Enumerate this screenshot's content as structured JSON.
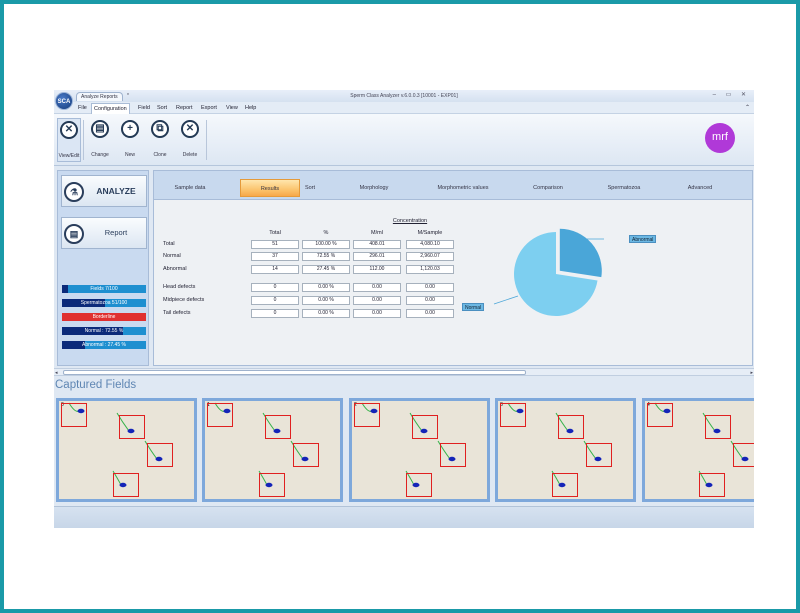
{
  "window": {
    "title": "Sperm Class Analyzer v.6.0.0.3 [10001 - EXP01]",
    "document_tab": "Analyze Reports",
    "document_tab_marker": "*",
    "logo_text": "SCA",
    "controls": "–  ▭  ✕"
  },
  "menu": {
    "items": [
      "File",
      "Configuration",
      "Field",
      "Sort",
      "Report",
      "Export",
      "View",
      "Help"
    ],
    "active": "Configuration"
  },
  "ribbon": {
    "buttons": [
      {
        "label": "View/Edit",
        "icon": "tools-icon",
        "glyph": "✕"
      },
      {
        "label": "Change",
        "icon": "document-icon",
        "glyph": "▤"
      },
      {
        "label": "New",
        "icon": "plus-icon",
        "glyph": "+"
      },
      {
        "label": "Clone",
        "icon": "clone-icon",
        "glyph": "⧉"
      },
      {
        "label": "Delete",
        "icon": "delete-icon",
        "glyph": "✕"
      }
    ],
    "brand": "mrf"
  },
  "left_panel": {
    "analyze_label": "ANALYZE",
    "report_label": "Report",
    "status": [
      {
        "text": "Fields 7/100",
        "fill": 0.07,
        "color": "#1e8fd0"
      },
      {
        "text": "Spermatozoa 51/100",
        "fill": 0.51,
        "color": "#1e8fd0"
      },
      {
        "text": "Borderline",
        "fill": 0,
        "color": "#e03030"
      },
      {
        "text": "Normal : 72.55 %",
        "fill": 0.7255,
        "color": "#1e8fd0"
      },
      {
        "text": "Abnormal : 27.45 %",
        "fill": 0.2745,
        "color": "#1e8fd0"
      }
    ]
  },
  "tabs": [
    "Sample data",
    "Results",
    "Sort",
    "Morphology",
    "Morphometric values",
    "Comparison",
    "Spermatozoa",
    "Advanced"
  ],
  "active_tab": "Results",
  "results": {
    "concentration_header": "Concentration",
    "columns": [
      "Total",
      "%",
      "M/ml",
      "M/Sample"
    ],
    "rows": [
      {
        "label": "Total",
        "values": [
          "51",
          "100.00 %",
          "408.01",
          "4,080.10"
        ]
      },
      {
        "label": "Normal",
        "values": [
          "37",
          "72.55 %",
          "296.01",
          "2,960.07"
        ]
      },
      {
        "label": "Abnormal",
        "values": [
          "14",
          "27.45 %",
          "112.00",
          "1,120.03"
        ]
      },
      {
        "label": "Head defects",
        "values": [
          "0",
          "0.00 %",
          "0.00",
          "0.00"
        ]
      },
      {
        "label": "Midpiece defects",
        "values": [
          "0",
          "0.00 %",
          "0.00",
          "0.00"
        ]
      },
      {
        "label": "Tail defects",
        "values": [
          "0",
          "0.00 %",
          "0.00",
          "0.00"
        ]
      }
    ]
  },
  "chart_data": {
    "type": "pie",
    "categories": [
      "Normal",
      "Abnormal"
    ],
    "values": [
      72.55,
      27.45
    ],
    "colors": [
      "#7dcff0",
      "#4aa6d8"
    ]
  },
  "scrollbar": {
    "left": "◂",
    "right": "▸"
  },
  "captured": {
    "title": "Captured Fields",
    "fields": [
      "0",
      "1",
      "2",
      "3",
      "4"
    ]
  }
}
